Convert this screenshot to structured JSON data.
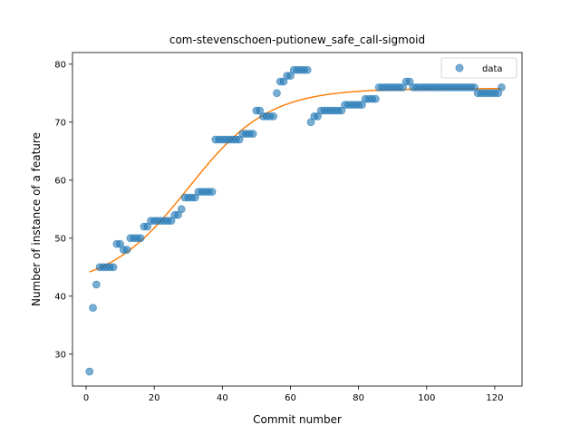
{
  "chart_data": {
    "type": "scatter",
    "title": "com-stevenschoen-putionew_safe_call-sigmoid",
    "xlabel": "Commit number",
    "ylabel": "Number of instance of a feature",
    "xlim": [
      -4,
      128
    ],
    "ylim": [
      24.5,
      82
    ],
    "xticks": [
      0,
      20,
      40,
      60,
      80,
      100,
      120
    ],
    "yticks": [
      30,
      40,
      50,
      60,
      70,
      80
    ],
    "legend": {
      "placement": "top-right",
      "entries": [
        "data"
      ]
    },
    "colors": {
      "data": "#1f77b4",
      "fit": "#ff7f0e"
    },
    "series": [
      {
        "name": "data",
        "kind": "scatter",
        "points": [
          [
            1,
            27
          ],
          [
            2,
            38
          ],
          [
            3,
            42
          ],
          [
            4,
            45
          ],
          [
            5,
            45
          ],
          [
            6,
            45
          ],
          [
            7,
            45
          ],
          [
            8,
            45
          ],
          [
            9,
            49
          ],
          [
            10,
            49
          ],
          [
            11,
            48
          ],
          [
            12,
            48
          ],
          [
            13,
            50
          ],
          [
            14,
            50
          ],
          [
            15,
            50
          ],
          [
            16,
            50
          ],
          [
            17,
            52
          ],
          [
            18,
            52
          ],
          [
            19,
            53
          ],
          [
            20,
            53
          ],
          [
            21,
            53
          ],
          [
            22,
            53
          ],
          [
            23,
            53
          ],
          [
            24,
            53
          ],
          [
            25,
            53
          ],
          [
            26,
            54
          ],
          [
            27,
            54
          ],
          [
            28,
            55
          ],
          [
            29,
            57
          ],
          [
            30,
            57
          ],
          [
            31,
            57
          ],
          [
            32,
            57
          ],
          [
            33,
            58
          ],
          [
            34,
            58
          ],
          [
            35,
            58
          ],
          [
            36,
            58
          ],
          [
            37,
            58
          ],
          [
            38,
            67
          ],
          [
            39,
            67
          ],
          [
            40,
            67
          ],
          [
            41,
            67
          ],
          [
            42,
            67
          ],
          [
            43,
            67
          ],
          [
            44,
            67
          ],
          [
            45,
            67
          ],
          [
            46,
            68
          ],
          [
            47,
            68
          ],
          [
            48,
            68
          ],
          [
            49,
            68
          ],
          [
            50,
            72
          ],
          [
            51,
            72
          ],
          [
            52,
            71
          ],
          [
            53,
            71
          ],
          [
            54,
            71
          ],
          [
            55,
            71
          ],
          [
            56,
            75
          ],
          [
            57,
            77
          ],
          [
            58,
            77
          ],
          [
            59,
            78
          ],
          [
            60,
            78
          ],
          [
            61,
            79
          ],
          [
            62,
            79
          ],
          [
            63,
            79
          ],
          [
            64,
            79
          ],
          [
            65,
            79
          ],
          [
            66,
            70
          ],
          [
            67,
            71
          ],
          [
            68,
            71
          ],
          [
            69,
            72
          ],
          [
            70,
            72
          ],
          [
            71,
            72
          ],
          [
            72,
            72
          ],
          [
            73,
            72
          ],
          [
            74,
            72
          ],
          [
            75,
            72
          ],
          [
            76,
            73
          ],
          [
            77,
            73
          ],
          [
            78,
            73
          ],
          [
            79,
            73
          ],
          [
            80,
            73
          ],
          [
            81,
            73
          ],
          [
            82,
            74
          ],
          [
            83,
            74
          ],
          [
            84,
            74
          ],
          [
            85,
            74
          ],
          [
            86,
            76
          ],
          [
            87,
            76
          ],
          [
            88,
            76
          ],
          [
            89,
            76
          ],
          [
            90,
            76
          ],
          [
            91,
            76
          ],
          [
            92,
            76
          ],
          [
            93,
            76
          ],
          [
            94,
            77
          ],
          [
            95,
            77
          ],
          [
            96,
            76
          ],
          [
            97,
            76
          ],
          [
            98,
            76
          ],
          [
            99,
            76
          ],
          [
            100,
            76
          ],
          [
            101,
            76
          ],
          [
            102,
            76
          ],
          [
            103,
            76
          ],
          [
            104,
            76
          ],
          [
            105,
            76
          ],
          [
            106,
            76
          ],
          [
            107,
            76
          ],
          [
            108,
            76
          ],
          [
            109,
            76
          ],
          [
            110,
            76
          ],
          [
            111,
            76
          ],
          [
            112,
            76
          ],
          [
            113,
            76
          ],
          [
            114,
            76
          ],
          [
            115,
            75
          ],
          [
            116,
            75
          ],
          [
            117,
            75
          ],
          [
            118,
            75
          ],
          [
            119,
            75
          ],
          [
            120,
            75
          ],
          [
            121,
            75
          ],
          [
            122,
            76
          ]
        ]
      },
      {
        "kind": "line",
        "sigmoid": {
          "L": 34.3,
          "k": 0.085,
          "x0": 30,
          "b": 41.5
        },
        "x_range": [
          1,
          122
        ]
      }
    ]
  }
}
